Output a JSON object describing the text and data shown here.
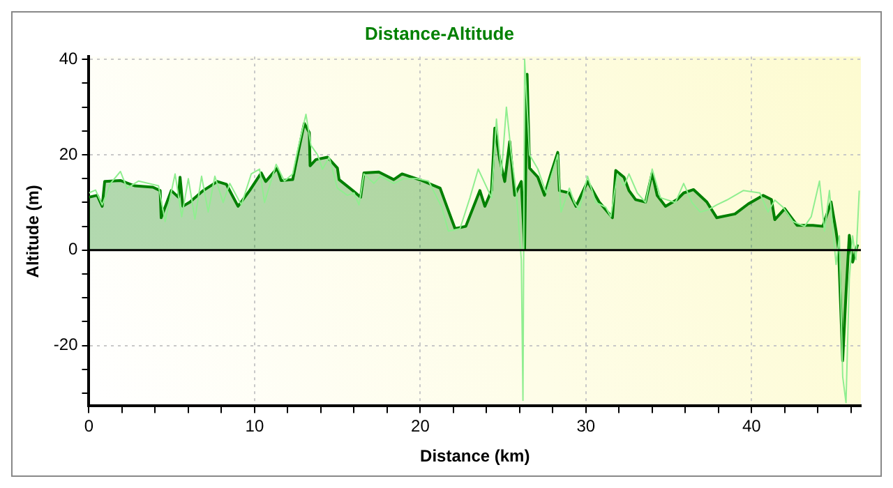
{
  "chart_data": {
    "type": "area",
    "title": "Distance-Altitude",
    "xlabel": "Distance (km)",
    "ylabel": "Altitude (m)",
    "xlim": [
      0,
      46.6
    ],
    "ylim": [
      -32.7,
      40.6
    ],
    "xticks": [
      0,
      {
        "value": 2,
        "label": null
      },
      {
        "value": 4,
        "label": null
      },
      {
        "value": 6,
        "label": null
      },
      {
        "value": 8,
        "label": null
      },
      10,
      {
        "value": 12,
        "label": null
      },
      {
        "value": 14,
        "label": null
      },
      {
        "value": 16,
        "label": null
      },
      {
        "value": 18,
        "label": null
      },
      20,
      {
        "value": 22,
        "label": null
      },
      {
        "value": 24,
        "label": null
      },
      {
        "value": 26,
        "label": null
      },
      {
        "value": 28,
        "label": null
      },
      30,
      {
        "value": 32,
        "label": null
      },
      {
        "value": 34,
        "label": null
      },
      {
        "value": 36,
        "label": null
      },
      {
        "value": 38,
        "label": null
      },
      40,
      {
        "value": 42,
        "label": null
      },
      {
        "value": 44,
        "label": null
      },
      {
        "value": 46,
        "label": null
      }
    ],
    "yticks": [
      {
        "value": -30,
        "label": null
      },
      {
        "value": -25,
        "label": null
      },
      -20,
      {
        "value": -15,
        "label": null
      },
      {
        "value": -10,
        "label": null
      },
      {
        "value": -5,
        "label": null
      },
      0,
      {
        "value": 5,
        "label": null
      },
      {
        "value": 10,
        "label": null
      },
      {
        "value": 15,
        "label": null
      },
      20,
      {
        "value": 25,
        "label": null
      },
      {
        "value": 30,
        "label": null
      },
      {
        "value": 35,
        "label": null
      },
      40
    ],
    "grid": true,
    "legend": false,
    "ref_lines": [
      {
        "axis": "y",
        "value": 0,
        "color": "#000000"
      }
    ],
    "series": [
      {
        "type": "line",
        "color": "#90ee90",
        "x": [
          0,
          0.4,
          0.8,
          1.3,
          1.9,
          2.3,
          3,
          4.2,
          4.6,
          5.2,
          5.6,
          6,
          6.4,
          6.8,
          7.2,
          7.6,
          8.1,
          8.5,
          9.2,
          9.8,
          10.3,
          10.6,
          11.3,
          11.8,
          12.3,
          12.6,
          13.1,
          13.4,
          13.8,
          14.1,
          14.5,
          15,
          15.6,
          16,
          16.3,
          16.6,
          17.2,
          17.6,
          18.4,
          19,
          19.8,
          20.5,
          21.3,
          21.7,
          22.4,
          23,
          23.5,
          24.3,
          24.6,
          24.9,
          25.2,
          25.5,
          25.8,
          26.1,
          26.2,
          26.3,
          26.6,
          27.1,
          27.6,
          28.3,
          28.5,
          29,
          29.3,
          29.6,
          30.1,
          30.6,
          31.2,
          31.5,
          31.9,
          32.3,
          32.6,
          33.1,
          33.6,
          34,
          34.5,
          35.4,
          35.9,
          36.4,
          36.9,
          37.4,
          37.9,
          38.5,
          39.5,
          40.5,
          41,
          41.4,
          41.9,
          42.5,
          43.2,
          43.6,
          44.1,
          44.4,
          44.7,
          45.1,
          45.3,
          45.5,
          45.7,
          45.9,
          46.1,
          46.3,
          46.5
        ],
        "values": [
          12,
          12.6,
          9.5,
          14,
          16.5,
          13,
          14.5,
          13.5,
          6,
          16,
          7,
          15,
          6.5,
          15.5,
          8,
          15.5,
          10,
          14,
          9.5,
          16,
          17,
          10,
          18,
          14.5,
          16,
          21,
          28.5,
          22,
          20,
          17,
          19.5,
          13,
          11.5,
          12,
          9.5,
          16,
          14,
          15.5,
          14,
          15,
          15,
          14.5,
          9,
          4,
          4.5,
          11,
          17,
          11,
          27.5,
          16,
          30,
          20,
          12,
          -2,
          -31.5,
          40,
          20,
          17,
          12,
          20,
          8,
          13,
          10,
          8.5,
          15.5,
          10,
          9,
          7,
          16,
          13.5,
          16,
          12,
          10,
          17,
          11,
          10,
          14,
          10,
          8,
          8.5,
          9.5,
          10.5,
          12.5,
          12,
          8,
          10.5,
          9,
          6,
          5,
          7,
          14.5,
          4,
          12.5,
          -3,
          3,
          -26.5,
          -32,
          -6,
          3,
          -2,
          12.5
        ]
      },
      {
        "color": "#008000",
        "x": [
          0,
          0.5,
          0.8,
          0.95,
          1.9,
          2.75,
          3.86,
          4.3,
          4.36,
          4.97,
          5.4,
          5.5,
          5.67,
          6.1,
          6.9,
          7.75,
          8.3,
          9,
          9.7,
          10.4,
          10.67,
          11.36,
          11.6,
          12.3,
          12.6,
          13,
          13.3,
          13.35,
          13.7,
          14.4,
          15,
          15.1,
          16.1,
          16.4,
          16.6,
          17.5,
          18.4,
          18.9,
          20.1,
          21.2,
          21.6,
          22.1,
          22.75,
          23.6,
          23.9,
          24.3,
          24.5,
          24.8,
          25.1,
          25.4,
          25.7,
          26.1,
          26.3,
          26.45,
          26.6,
          27.1,
          27.5,
          27.9,
          28.3,
          28.4,
          29,
          29.4,
          30.1,
          30.8,
          31.6,
          31.8,
          32.3,
          32.6,
          33,
          33.6,
          34,
          34.3,
          34.8,
          35.5,
          35.9,
          36.5,
          37.3,
          37.9,
          39,
          39.8,
          40.7,
          41.2,
          41.4,
          42,
          42.75,
          43.7,
          44.3,
          44.8,
          45.1,
          45.25,
          45.5,
          45.7,
          45.9,
          46.1,
          46.4
        ],
        "values": [
          11.1,
          11.5,
          9.2,
          14.4,
          14.6,
          13.5,
          13.2,
          12.5,
          6.8,
          12.5,
          11.1,
          15.3,
          9.2,
          10.1,
          12.5,
          14.4,
          13.8,
          9.2,
          12.5,
          16.2,
          14.4,
          17.2,
          14.6,
          14.8,
          20,
          26.6,
          24.7,
          17.7,
          19,
          19.5,
          17.2,
          14.8,
          12,
          11.1,
          16.2,
          16.4,
          14.8,
          16,
          14.6,
          13,
          9.2,
          4.5,
          5,
          12.5,
          9.2,
          12.5,
          25.6,
          19,
          14.4,
          22.8,
          11.5,
          14.4,
          0.3,
          36.9,
          17.2,
          15.3,
          11.5,
          16.2,
          20.5,
          12.5,
          12,
          9.2,
          14.4,
          10.1,
          6.8,
          16.7,
          15.3,
          12.5,
          10.6,
          10.1,
          16.2,
          11.5,
          9.2,
          10.6,
          12,
          12.7,
          10.1,
          6.8,
          7.6,
          9.7,
          11.5,
          10.6,
          6.4,
          8.7,
          5.2,
          5.2,
          5,
          10.1,
          4,
          0.3,
          -23.2,
          -9.1,
          3.1,
          -2.5,
          1.2
        ]
      }
    ]
  }
}
